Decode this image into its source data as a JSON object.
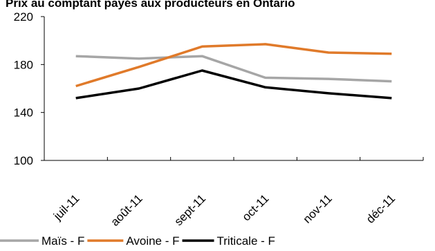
{
  "chart_data": {
    "type": "line",
    "title": "Prix au comptant payés aux producteurs en Ontario",
    "categories": [
      "juil-11",
      "août-11",
      "sept-11",
      "oct-11",
      "nov-11",
      "déc-11"
    ],
    "ylim": [
      100,
      220
    ],
    "yticks": [
      100,
      140,
      180,
      220
    ],
    "series": [
      {
        "name": "Maïs - F",
        "color": "#a6a6a6",
        "values": [
          187,
          185,
          187,
          169,
          168,
          166
        ]
      },
      {
        "name": "Avoine - F",
        "color": "#e07a2a",
        "values": [
          162,
          178,
          195,
          197,
          190,
          189
        ]
      },
      {
        "name": "Triticale - F",
        "color": "#000000",
        "values": [
          152,
          160,
          175,
          161,
          156,
          152
        ]
      }
    ],
    "legend_position": "bottom"
  }
}
